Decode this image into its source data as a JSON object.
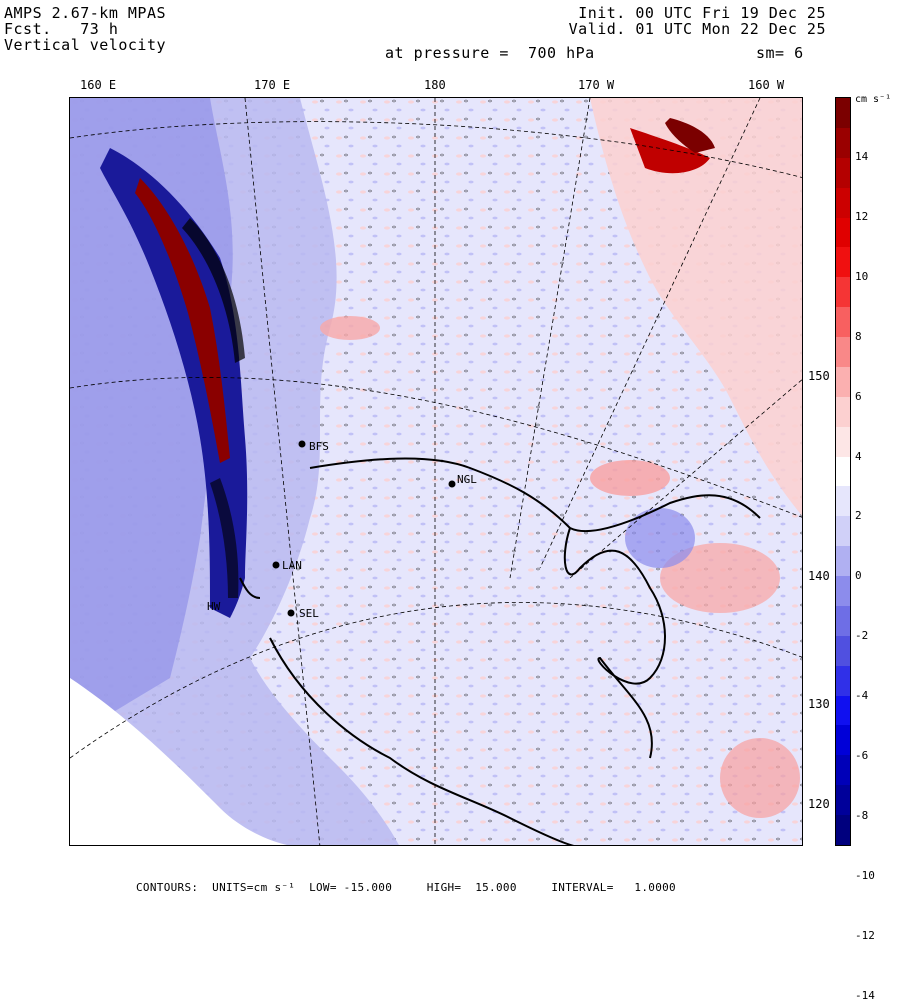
{
  "header": {
    "model": "AMPS 2.67-km MPAS",
    "fcst": "Fcst.   73 h",
    "field": "Vertical velocity",
    "init": "Init. 00 UTC Fri 19 Dec 25",
    "valid": "Valid. 01 UTC Mon 22 Dec 25",
    "pressure": "at pressure =  700 hPa",
    "smooth": "sm= 6"
  },
  "lon_labels": [
    "160 E",
    "170 E",
    "180",
    "170 W",
    "160 W"
  ],
  "lat_labels": [
    "150 W",
    "140 W",
    "130 W",
    "120 W"
  ],
  "stations": [
    "BFS",
    "NGL",
    "LAN",
    "SEL",
    "HW"
  ],
  "colorbar": {
    "unit": "cm s⁻¹",
    "ticks": [
      "14",
      "12",
      "10",
      "8",
      "6",
      "4",
      "2",
      "0",
      "-2",
      "-4",
      "-6",
      "-8",
      "-10",
      "-12",
      "-14"
    ],
    "colors": [
      "#7b0000",
      "#9a0000",
      "#b40000",
      "#cc0000",
      "#e00000",
      "#f01010",
      "#f53535",
      "#f86060",
      "#f98888",
      "#fbb0b0",
      "#fcd0d0",
      "#fde6e6",
      "#ffffff",
      "#e6e6fc",
      "#d0d0f8",
      "#b0b0f2",
      "#8c8cec",
      "#6e6ee6",
      "#5050e0",
      "#3030e8",
      "#1010f0",
      "#0000d8",
      "#0000b8",
      "#00009a",
      "#00007e"
    ]
  },
  "footer": "CONTOURS:  UNITS=cm s⁻¹  LOW= -15.000     HIGH=  15.000     INTERVAL=   1.0000"
}
